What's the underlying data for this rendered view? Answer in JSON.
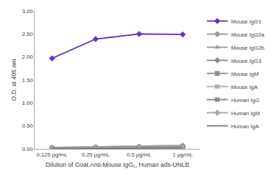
{
  "chart_data": {
    "type": "line",
    "x_label": "Dilution of Goat Anti-Mouse IgG₁, Human ads-UNLB",
    "y_label": "O.D. at 405 nm",
    "categories": [
      "0.125 µg/mL",
      "0.25 µg/mL",
      "0.5 µg/mL",
      "1 µg/mL"
    ],
    "series": [
      {
        "name": "Mouse IgG1",
        "color": "#6633cc",
        "marker": "diamond",
        "values": [
          1.97,
          2.39,
          2.5,
          2.49
        ]
      },
      {
        "name": "Mouse IgG2a",
        "color": "#999999",
        "marker": "diamond",
        "values": [
          0.03,
          0.04,
          0.05,
          0.07
        ]
      },
      {
        "name": "Mouse IgG2b",
        "color": "#a0a0a0",
        "marker": "triangle-up",
        "values": [
          0.03,
          0.04,
          0.06,
          0.08
        ]
      },
      {
        "name": "Mouse IgG3",
        "color": "#8a8a8a",
        "marker": "diamond",
        "values": [
          0.02,
          0.03,
          0.04,
          0.05
        ]
      },
      {
        "name": "Mouse IgM",
        "color": "#909090",
        "marker": "square",
        "values": [
          0.02,
          0.03,
          0.04,
          0.05
        ]
      },
      {
        "name": "Mouse IgA",
        "color": "#b0b0b0",
        "marker": "x",
        "values": [
          0.02,
          0.02,
          0.03,
          0.04
        ]
      },
      {
        "name": "Human IgG",
        "color": "#888888",
        "marker": "x",
        "values": [
          0.01,
          0.02,
          0.02,
          0.03
        ]
      },
      {
        "name": "Human IgM",
        "color": "#a8a8a8",
        "marker": "cross",
        "values": [
          0.01,
          0.02,
          0.02,
          0.02
        ]
      },
      {
        "name": "Human IgA",
        "color": "#7f7f7f",
        "marker": "none",
        "values": [
          0.01,
          0.01,
          0.02,
          0.02
        ]
      }
    ],
    "ylim": [
      0,
      3
    ],
    "yticks": [
      {
        "value": 0,
        "label": "0.00"
      },
      {
        "value": 0.5,
        "label": "0.50"
      },
      {
        "value": 1,
        "label": "1.00"
      },
      {
        "value": 1.5,
        "label": "1.50"
      },
      {
        "value": 2,
        "label": "2.00"
      },
      {
        "value": 2.5,
        "label": "2.50"
      },
      {
        "value": 3,
        "label": "3.00"
      }
    ],
    "grid": false,
    "legend": "right"
  }
}
